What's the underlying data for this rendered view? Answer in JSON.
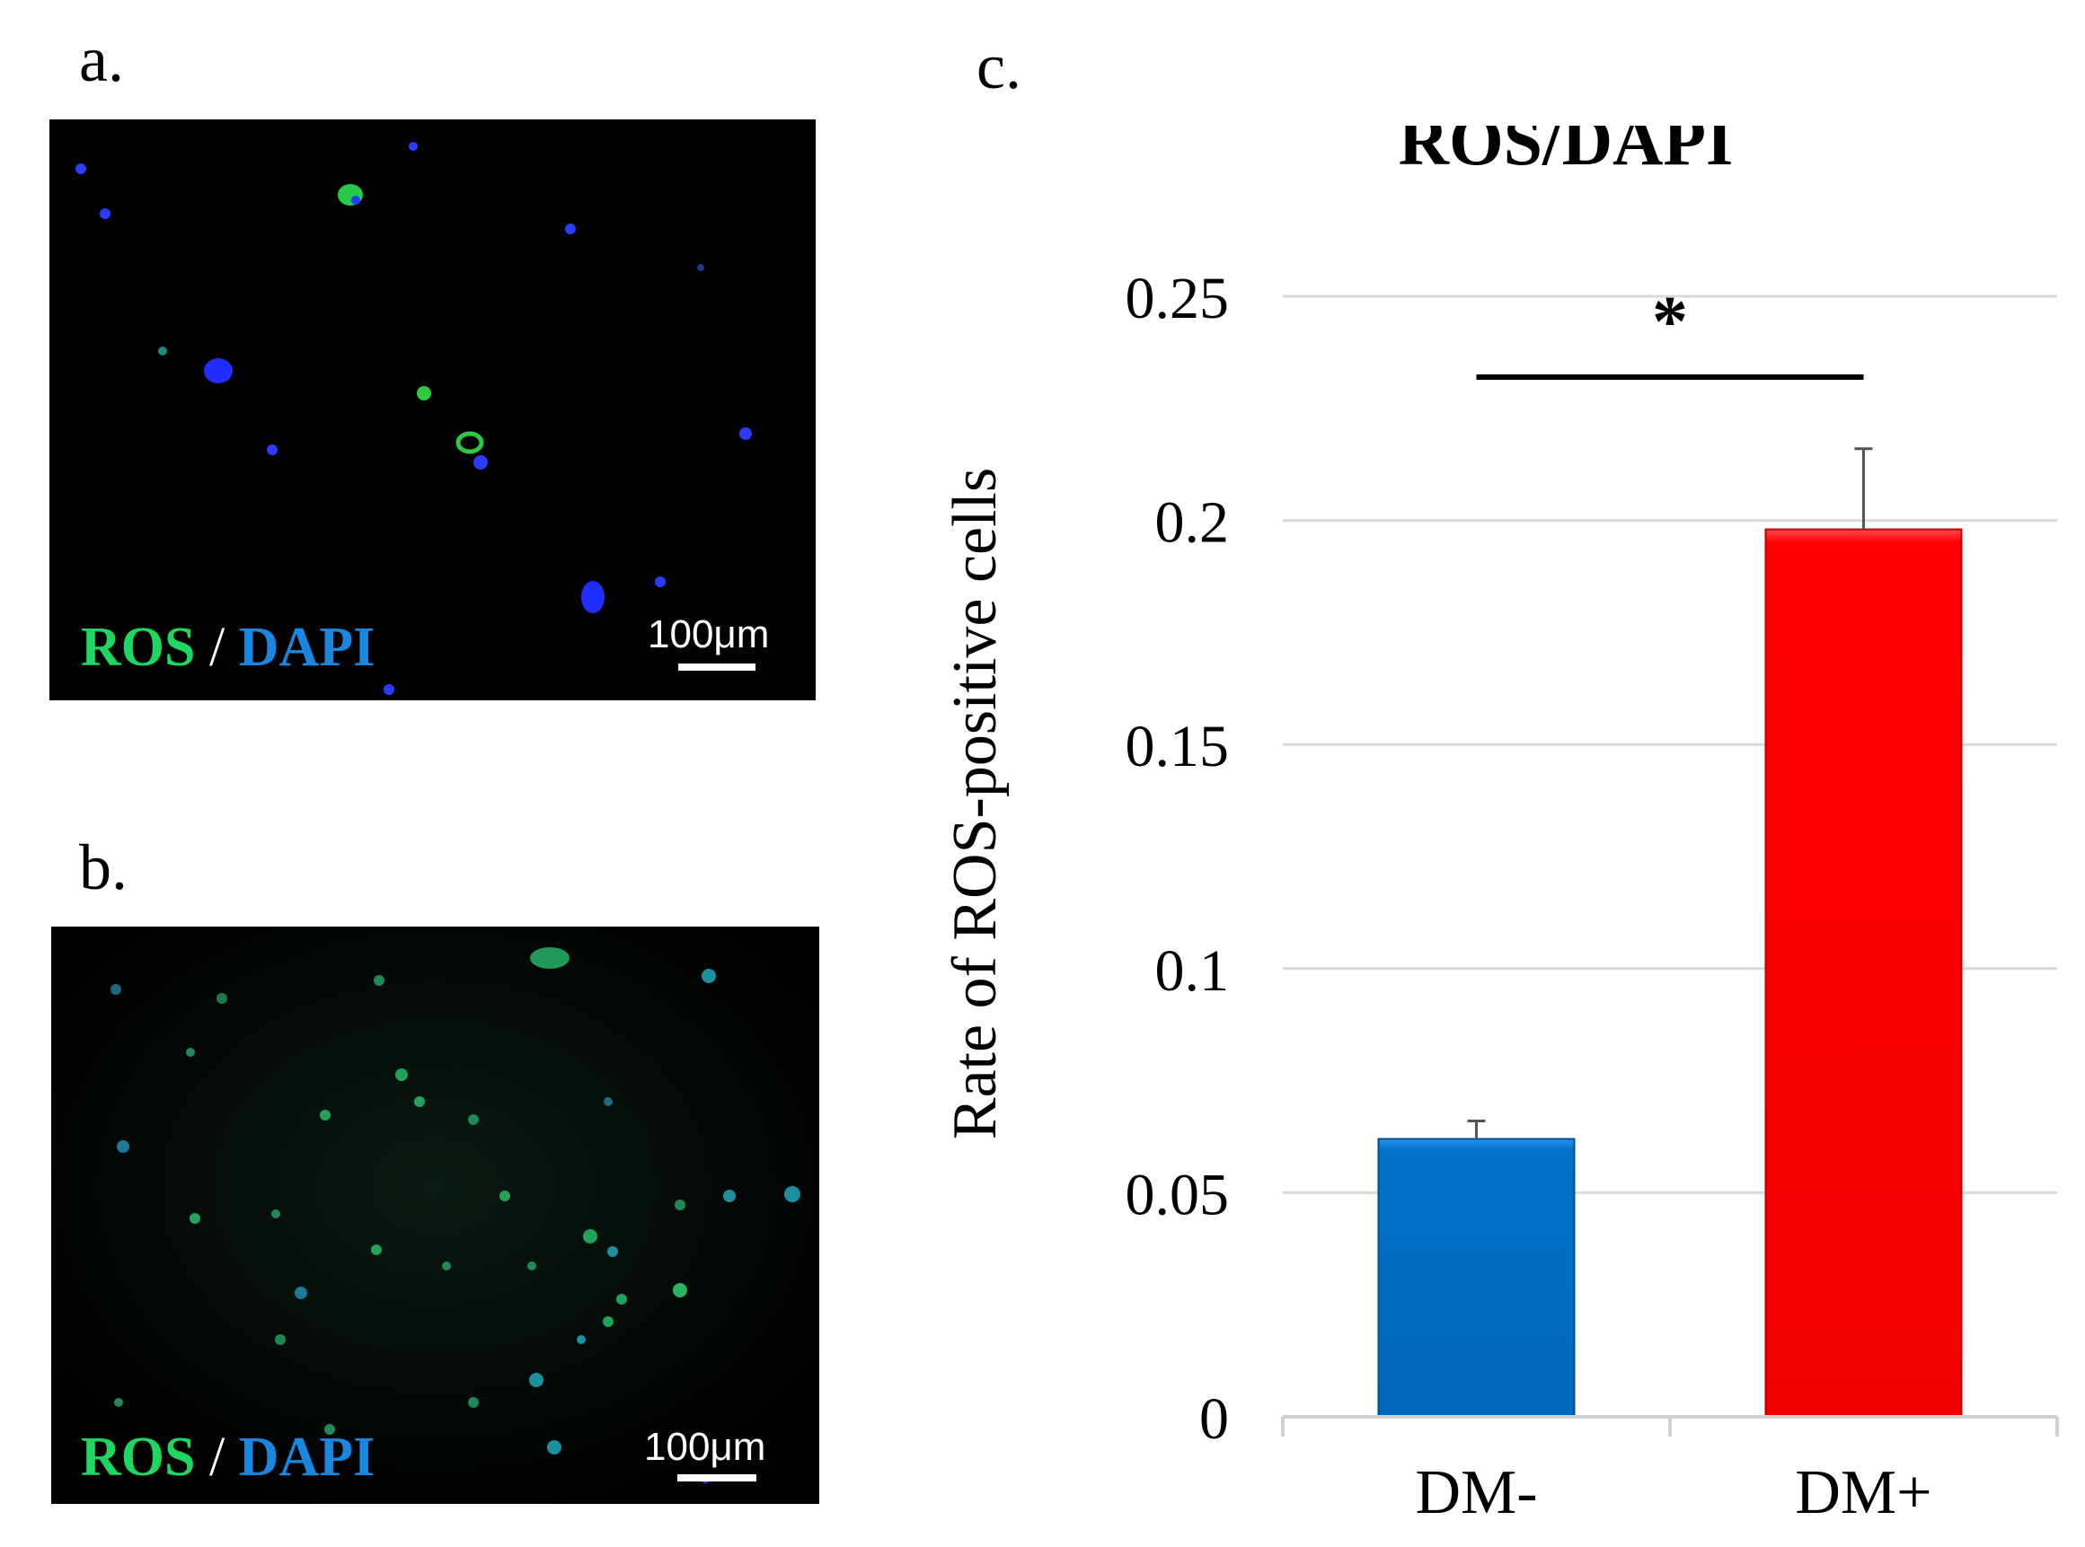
{
  "panels": {
    "a": {
      "letter": "a.",
      "stain_ros": "ROS",
      "stain_sep": "/",
      "stain_dapi": "DAPI",
      "scale_label": "100μm"
    },
    "b": {
      "letter": "b.",
      "stain_ros": "ROS",
      "stain_sep": "/",
      "stain_dapi": "DAPI",
      "scale_label": "100μm"
    },
    "c": {
      "letter": "c."
    }
  },
  "colors": {
    "ros_green": "#1ed760",
    "dapi_blue": "#1a86e0",
    "bar_dm_minus": "#0070c8",
    "bar_dm_plus": "#ff0000"
  },
  "chart_data": {
    "type": "bar",
    "title": "ROS/DAPI",
    "ylabel": "Rate of ROS-positive cells",
    "xlabel": "",
    "categories": [
      "DM-",
      "DM+"
    ],
    "values": [
      0.062,
      0.198
    ],
    "errors": [
      0.004,
      0.018
    ],
    "ylim": [
      0,
      0.25
    ],
    "yticks": [
      0,
      0.05,
      0.1,
      0.15,
      0.2,
      0.25
    ],
    "ytick_labels": [
      "0",
      "0.05",
      "0.1",
      "0.15",
      "0.2",
      "0.25"
    ],
    "grid": true,
    "significance": {
      "label": "*",
      "between": [
        "DM-",
        "DM+"
      ]
    }
  }
}
